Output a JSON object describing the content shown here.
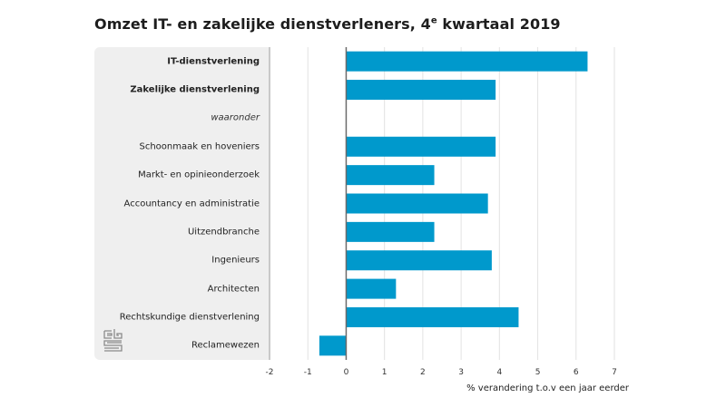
{
  "title_main": "Omzet IT- en zakelijke dienstverleners, 4",
  "title_sup": "e",
  "title_end": " kwartaal 2019",
  "logo": "cbs-logo-icon",
  "chart_data": {
    "type": "bar",
    "orientation": "horizontal",
    "title": "Omzet IT- en zakelijke dienstverleners, 4e kwartaal 2019",
    "xlabel": "% verandering t.o.v een jaar eerder",
    "ylabel": "",
    "xlim": [
      -2,
      7
    ],
    "xticks": [
      "-2",
      "-1",
      "0",
      "1",
      "2",
      "3",
      "4",
      "5",
      "6",
      "7"
    ],
    "grid": true,
    "bar_color": "#0099cc",
    "categories": [
      {
        "label": "IT-dienstverlening",
        "style": "bold"
      },
      {
        "label": "Zakelijke dienstverlening",
        "style": "bold"
      },
      {
        "label": "waaronder",
        "style": "italic"
      },
      {
        "label": "Schoonmaak en hoveniers",
        "style": "normal"
      },
      {
        "label": "Markt- en opinieonderzoek",
        "style": "normal"
      },
      {
        "label": "Accountancy en administratie",
        "style": "normal"
      },
      {
        "label": "Uitzendbranche",
        "style": "normal"
      },
      {
        "label": "Ingenieurs",
        "style": "normal"
      },
      {
        "label": "Architecten",
        "style": "normal"
      },
      {
        "label": "Rechtskundige dienstverlening",
        "style": "normal"
      },
      {
        "label": "Reclamewezen",
        "style": "normal"
      }
    ],
    "values": [
      6.3,
      3.9,
      null,
      3.9,
      2.3,
      3.7,
      2.3,
      3.8,
      1.3,
      4.5,
      -0.7
    ]
  }
}
